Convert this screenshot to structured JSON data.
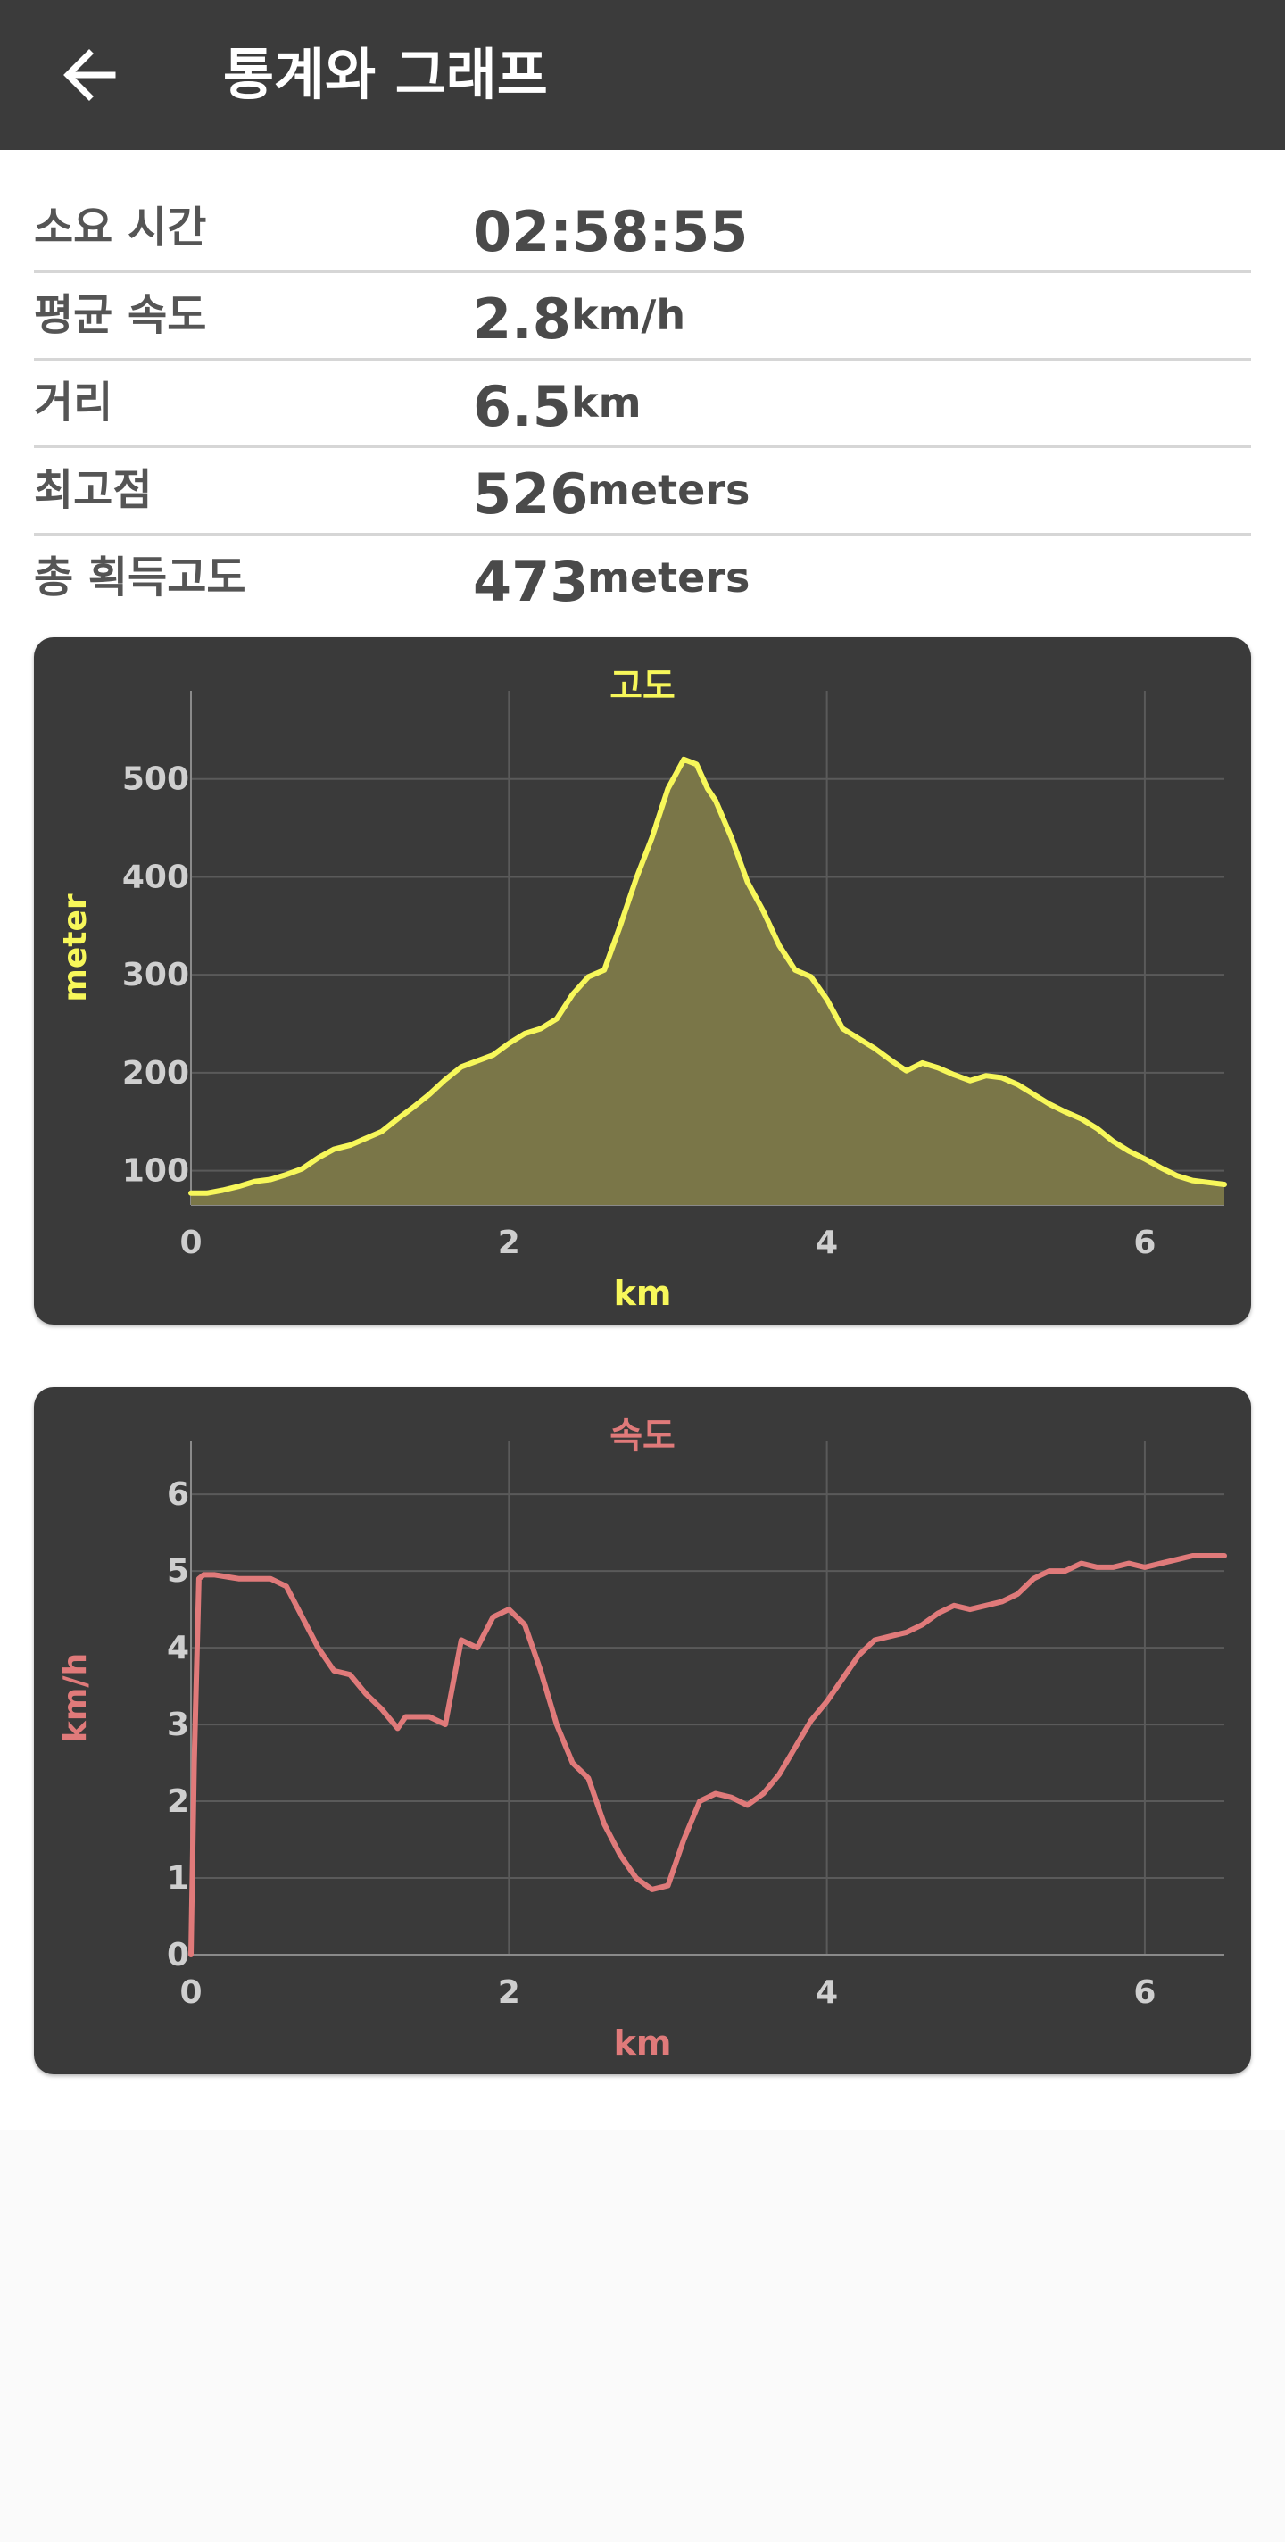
{
  "app_bar": {
    "title": "통계와 그래프",
    "back_icon": "arrow-left-icon"
  },
  "stats": [
    {
      "label": "소요 시간",
      "value": "02:58:55",
      "unit": ""
    },
    {
      "label": "평균 속도",
      "value": "2.8",
      "unit": "km/h"
    },
    {
      "label": "거리",
      "value": "6.5",
      "unit": "km"
    },
    {
      "label": "최고점",
      "value": "526",
      "unit": "meters"
    },
    {
      "label": "총 획득고도",
      "value": "473",
      "unit": "meters"
    }
  ],
  "colors": {
    "app_bar": "#3b3b3b",
    "card": "#3a3a3a",
    "altitude_line": "#f7f75a",
    "altitude_fill": "#7a7648",
    "speed_line": "#e07a7a"
  },
  "chart_data": [
    {
      "type": "area",
      "title": "고도",
      "xlabel": "km",
      "ylabel": "meter",
      "xlim": [
        0,
        6.5
      ],
      "ylim": [
        65,
        590
      ],
      "xticks": [
        "0",
        "2",
        "4",
        "6"
      ],
      "xtick_values": [
        0,
        2,
        4,
        6
      ],
      "yticks": [
        "100",
        "200",
        "300",
        "400",
        "500"
      ],
      "ytick_values": [
        100,
        200,
        300,
        400,
        500
      ],
      "grid": true,
      "series": [
        {
          "x": [
            0,
            0.1,
            0.2,
            0.3,
            0.4,
            0.5,
            0.6,
            0.7,
            0.8,
            0.9,
            1.0,
            1.1,
            1.2,
            1.3,
            1.4,
            1.5,
            1.6,
            1.7,
            1.8,
            1.9,
            2.0,
            2.1,
            2.2,
            2.3,
            2.4,
            2.5,
            2.6,
            2.7,
            2.8,
            2.9,
            3.0,
            3.1,
            3.18,
            3.25,
            3.3,
            3.4,
            3.5,
            3.6,
            3.7,
            3.8,
            3.9,
            4.0,
            4.1,
            4.2,
            4.3,
            4.4,
            4.5,
            4.6,
            4.7,
            4.8,
            4.9,
            5.0,
            5.1,
            5.2,
            5.3,
            5.4,
            5.5,
            5.6,
            5.7,
            5.8,
            5.9,
            6.0,
            6.1,
            6.2,
            6.3,
            6.4,
            6.5
          ],
          "values": [
            77,
            77,
            80,
            84,
            89,
            91,
            96,
            102,
            113,
            122,
            126,
            133,
            140,
            153,
            165,
            178,
            193,
            206,
            212,
            218,
            230,
            240,
            245,
            255,
            280,
            298,
            305,
            350,
            398,
            440,
            490,
            520,
            515,
            490,
            478,
            440,
            395,
            365,
            330,
            305,
            298,
            275,
            245,
            235,
            225,
            213,
            202,
            210,
            205,
            198,
            192,
            197,
            195,
            188,
            178,
            168,
            160,
            153,
            143,
            130,
            120,
            112,
            103,
            95,
            90,
            88,
            86
          ]
        }
      ]
    },
    {
      "type": "line",
      "title": "속도",
      "xlabel": "km",
      "ylabel": "km/h",
      "xlim": [
        0,
        6.5
      ],
      "ylim": [
        0,
        6.7
      ],
      "xticks": [
        "0",
        "2",
        "4",
        "6"
      ],
      "xtick_values": [
        0,
        2,
        4,
        6
      ],
      "yticks": [
        "0",
        "1",
        "2",
        "3",
        "4",
        "5",
        "6"
      ],
      "ytick_values": [
        0,
        1,
        2,
        3,
        4,
        5,
        6
      ],
      "grid": true,
      "series": [
        {
          "x": [
            0,
            0.02,
            0.05,
            0.08,
            0.15,
            0.3,
            0.5,
            0.6,
            0.7,
            0.8,
            0.9,
            1.0,
            1.1,
            1.2,
            1.3,
            1.35,
            1.4,
            1.5,
            1.6,
            1.7,
            1.8,
            1.9,
            2.0,
            2.1,
            2.2,
            2.3,
            2.4,
            2.5,
            2.6,
            2.7,
            2.8,
            2.9,
            3.0,
            3.1,
            3.2,
            3.3,
            3.4,
            3.5,
            3.6,
            3.7,
            3.8,
            3.9,
            4.0,
            4.1,
            4.2,
            4.3,
            4.4,
            4.5,
            4.6,
            4.7,
            4.8,
            4.9,
            5.0,
            5.1,
            5.2,
            5.3,
            5.4,
            5.5,
            5.6,
            5.7,
            5.8,
            5.9,
            6.0,
            6.1,
            6.2,
            6.3,
            6.4,
            6.5
          ],
          "values": [
            0,
            2.5,
            4.9,
            4.95,
            4.95,
            4.9,
            4.9,
            4.8,
            4.4,
            4.0,
            3.7,
            3.65,
            3.4,
            3.2,
            2.95,
            3.1,
            3.1,
            3.1,
            3.0,
            4.1,
            4.0,
            4.4,
            4.5,
            4.3,
            3.7,
            3.0,
            2.5,
            2.3,
            1.7,
            1.3,
            1.0,
            0.85,
            0.9,
            1.5,
            2.0,
            2.1,
            2.05,
            1.95,
            2.1,
            2.35,
            2.7,
            3.05,
            3.3,
            3.6,
            3.9,
            4.1,
            4.15,
            4.2,
            4.3,
            4.45,
            4.55,
            4.5,
            4.55,
            4.6,
            4.7,
            4.9,
            5.0,
            5.0,
            5.1,
            5.05,
            5.05,
            5.1,
            5.05,
            5.1,
            5.15,
            5.2,
            5.2,
            5.2
          ]
        }
      ]
    }
  ]
}
